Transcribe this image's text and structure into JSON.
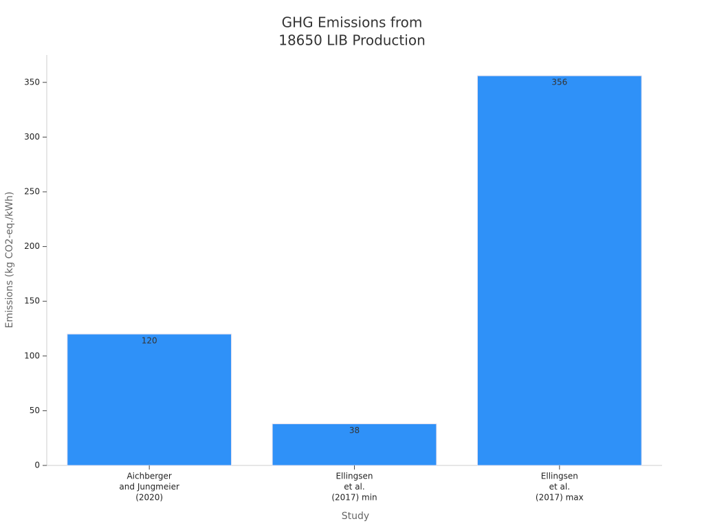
{
  "chart_data": {
    "type": "bar",
    "title": [
      "GHG Emissions from",
      "18650 LIB Production"
    ],
    "x_label": "Study",
    "y_label": "Emissions (kg CO2-eq./kWh)",
    "categories": [
      [
        "Aichberger",
        "and Jungmeier",
        "(2020)"
      ],
      [
        "Ellingsen",
        "et al.",
        "(2017) min"
      ],
      [
        "Ellingsen",
        "et al.",
        "(2017) max"
      ]
    ],
    "values": [
      120,
      38,
      356
    ],
    "color": "#2f91f8",
    "ylim": [
      0,
      375
    ],
    "yticks": [
      0,
      50,
      100,
      150,
      200,
      250,
      300,
      350
    ]
  }
}
